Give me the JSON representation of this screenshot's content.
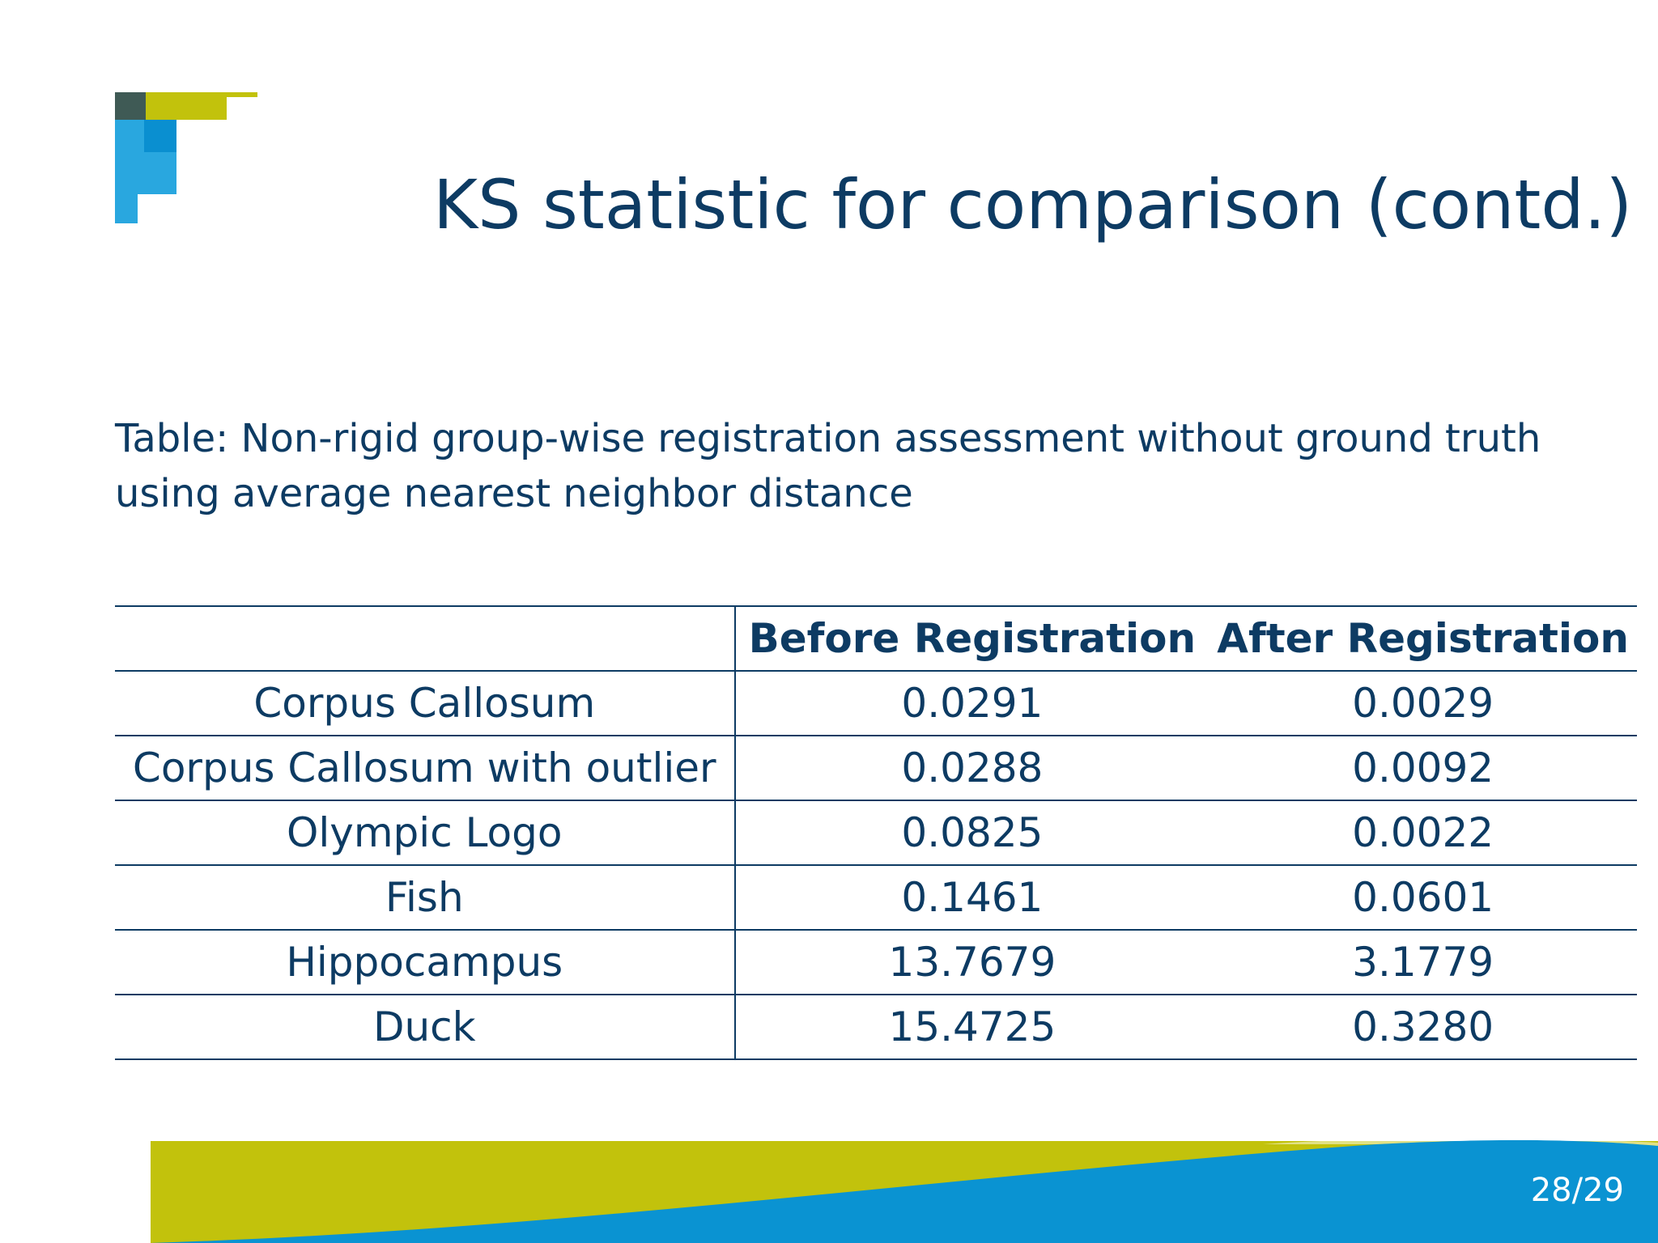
{
  "slide": {
    "title": "KS statistic for comparison (contd.)",
    "caption": "Table: Non-rigid group-wise registration assessment without ground truth using average nearest neighbor distance",
    "page_number": "28/29"
  },
  "table": {
    "headers": [
      "",
      "Before Registration",
      "After Registration"
    ],
    "rows": [
      {
        "label": "Corpus Callosum",
        "before": "0.0291",
        "after": "0.0029"
      },
      {
        "label": "Corpus Callosum with outlier",
        "before": "0.0288",
        "after": "0.0092"
      },
      {
        "label": "Olympic Logo",
        "before": "0.0825",
        "after": "0.0022"
      },
      {
        "label": "Fish",
        "before": "0.1461",
        "after": "0.0601"
      },
      {
        "label": "Hippocampus",
        "before": "13.7679",
        "after": "3.1779"
      },
      {
        "label": "Duck",
        "before": "15.4725",
        "after": "0.3280"
      }
    ]
  },
  "colors": {
    "text": "#0d3b63",
    "accent_green": "#c2c20c",
    "accent_blue": "#0a93d2",
    "light_blue": "#29a7df",
    "dark_teal": "#3f5a55"
  }
}
